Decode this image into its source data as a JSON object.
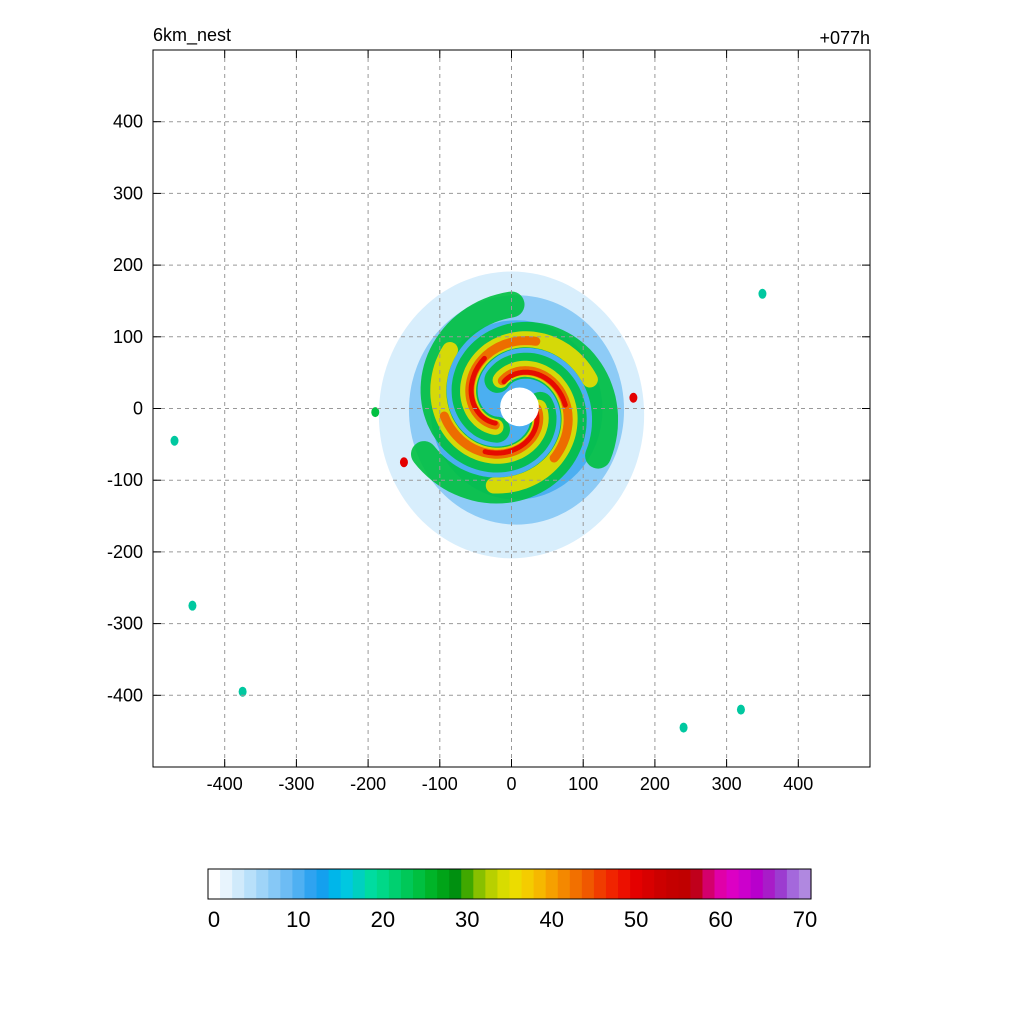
{
  "chart_data": {
    "type": "heatmap",
    "title": "6km_nest",
    "forecast_label": "+077h",
    "xlabel": "",
    "ylabel": "",
    "xlim": [
      -500,
      500
    ],
    "ylim": [
      -500,
      500
    ],
    "x_ticks": [
      -400,
      -300,
      -200,
      -100,
      0,
      100,
      200,
      300,
      400
    ],
    "y_ticks": [
      400,
      300,
      200,
      100,
      0,
      -100,
      -200,
      -300,
      -400
    ],
    "grid": true,
    "colorbar": {
      "orientation": "horizontal",
      "range": [
        0,
        70
      ],
      "tick_values": [
        0,
        10,
        20,
        30,
        40,
        50,
        60,
        70
      ],
      "colors": [
        "#ffffff",
        "#e8f4fd",
        "#d0eafb",
        "#b8e0fa",
        "#9fd4f8",
        "#86c8f6",
        "#6dbcf4",
        "#4fb0f2",
        "#2fa3f0",
        "#14a0ee",
        "#00b6ea",
        "#00c8e0",
        "#00d0c0",
        "#00dca0",
        "#00d888",
        "#00d070",
        "#00c858",
        "#00c040",
        "#00b428",
        "#00a418",
        "#009010",
        "#40a800",
        "#88c000",
        "#b8d000",
        "#d8dc00",
        "#ecdc00",
        "#f4cc00",
        "#f6b800",
        "#f6a000",
        "#f48800",
        "#f27000",
        "#f05800",
        "#f03c00",
        "#f02400",
        "#ec1000",
        "#e40000",
        "#d80000",
        "#cc0000",
        "#c40000",
        "#c00000",
        "#c0001c",
        "#d4006c",
        "#e000a8",
        "#dc00c4",
        "#cc00cc",
        "#b800cc",
        "#a81cc8",
        "#9c3cd0",
        "#a468dc",
        "#b088e0"
      ]
    },
    "storm": {
      "center": [
        0,
        5
      ],
      "eye_radius_km": 30,
      "field_description_values": "wind speed contours, max ~55 in eyewall"
    }
  }
}
